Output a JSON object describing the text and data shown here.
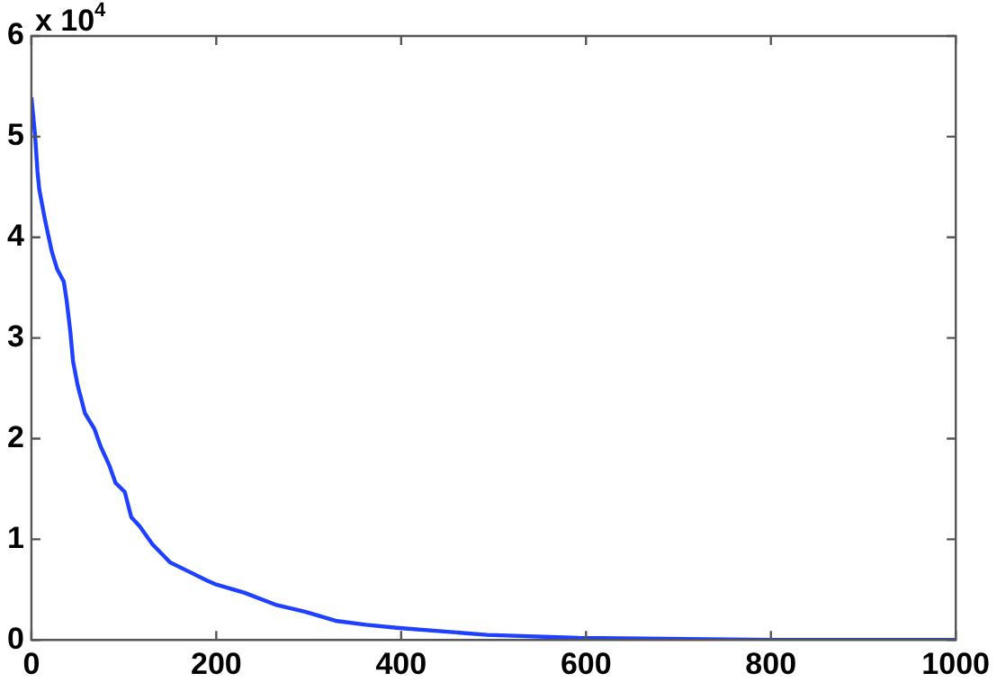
{
  "chart_data": {
    "type": "line",
    "annotations": [
      "x 10$^{4}$"
    ],
    "series": [
      {
        "color": "#2040ff",
        "x": [
          0,
          4,
          6.6,
          8.6,
          15,
          22,
          28,
          35,
          38,
          42,
          45,
          50,
          58,
          68,
          75,
          84,
          91,
          101,
          108,
          117,
          131,
          150,
          170,
          190,
          200,
          230,
          264,
          296,
          329,
          362,
          395,
          493,
          592,
          800,
          1000
        ],
        "values": [
          5.39,
          5.01,
          4.65,
          4.47,
          4.16,
          3.86,
          3.68,
          3.56,
          3.38,
          3.07,
          2.77,
          2.53,
          2.25,
          2.1,
          1.92,
          1.74,
          1.56,
          1.47,
          1.22,
          1.13,
          0.95,
          0.77,
          0.68,
          0.59,
          0.55,
          0.47,
          0.35,
          0.28,
          0.19,
          0.15,
          0.12,
          0.05,
          0.02,
          0,
          0
        ]
      }
    ],
    "xlim": [
      0,
      1000
    ],
    "xticks": [
      0,
      200,
      400,
      600,
      800,
      1000
    ],
    "ylim": [
      0,
      6
    ],
    "yticks": [
      0,
      1,
      2,
      3,
      4,
      5,
      6
    ],
    "grid": false,
    "legend": false,
    "marker": "none",
    "line_style": "solid"
  }
}
